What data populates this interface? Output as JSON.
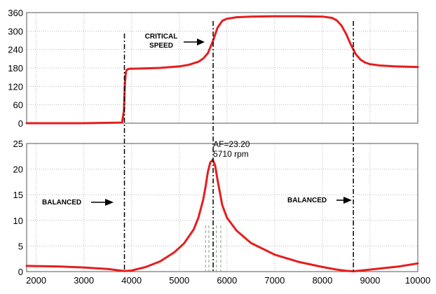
{
  "chart_data": {
    "type": "line",
    "xlabel": "",
    "x_ticks": [
      2000,
      3000,
      4000,
      5000,
      6000,
      7000,
      8000,
      9000,
      10000
    ],
    "xlim": [
      1800,
      10000
    ],
    "grid": true,
    "series_color": "#e41e1e",
    "panels": [
      {
        "name": "phase",
        "ylabel": "",
        "ylim": [
          0,
          360
        ],
        "y_ticks": [
          0,
          60,
          120,
          180,
          240,
          300,
          360
        ],
        "series": [
          {
            "x": [
              1800,
              3000,
              3800,
              3840,
              3860,
              3880,
              3900,
              3950,
              4200,
              4600,
              5000,
              5200,
              5400,
              5500,
              5600,
              5700,
              5800,
              5900,
              6000,
              6200,
              6500,
              7000,
              7500,
              8000,
              8200,
              8300,
              8400,
              8500,
              8600,
              8700,
              8800,
              8900,
              9000,
              9200,
              9500,
              10000
            ],
            "y": [
              0,
              0,
              2,
              40,
              130,
              165,
              174,
              177,
              178,
              180,
              185,
              190,
              200,
              210,
              228,
              265,
              310,
              333,
              340,
              345,
              347,
              348,
              348,
              347,
              343,
              335,
              318,
              290,
              255,
              225,
              207,
              197,
              192,
              188,
              185,
              183
            ]
          }
        ],
        "annotations": [
          {
            "text": "CRITICAL",
            "x": 5700
          },
          {
            "text": "SPEED",
            "x": 5700
          }
        ]
      },
      {
        "name": "amplitude",
        "ylabel": "",
        "ylim": [
          0,
          25
        ],
        "y_ticks": [
          0,
          5,
          10,
          15,
          20,
          25
        ],
        "series": [
          {
            "x": [
              1800,
              2500,
              3000,
              3500,
              3850,
              4000,
              4300,
              4600,
              4900,
              5100,
              5300,
              5400,
              5500,
              5550,
              5600,
              5650,
              5700,
              5750,
              5800,
              5850,
              5900,
              6000,
              6200,
              6500,
              7000,
              7500,
              8000,
              8300,
              8500,
              8650,
              8800,
              9000,
              9300,
              9600,
              10000
            ],
            "y": [
              1.1,
              1.0,
              0.8,
              0.5,
              0.1,
              0.2,
              0.9,
              2.0,
              3.8,
              5.5,
              8.2,
              10.5,
              14.0,
              16.5,
              19.5,
              21.3,
              21.8,
              20.8,
              18.0,
              15.5,
              13.0,
              10.5,
              8.0,
              5.6,
              3.3,
              1.9,
              0.9,
              0.4,
              0.15,
              0.05,
              0.2,
              0.4,
              0.7,
              1.0,
              1.6
            ]
          }
        ],
        "annotations": [
          {
            "text": "AF=23.20",
            "x": 5710
          },
          {
            "text": "5710 rpm",
            "x": 5710
          },
          {
            "text": "BALANCED",
            "x": 3850
          },
          {
            "text": "BALANCED",
            "x": 8650
          }
        ],
        "band_lines_x": [
          5550,
          5620,
          5780,
          5870
        ]
      }
    ],
    "vertical_markers_x": [
      3850,
      5710,
      8650
    ]
  }
}
